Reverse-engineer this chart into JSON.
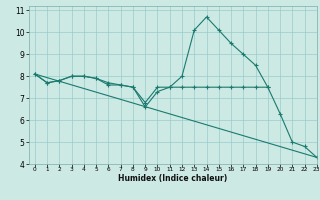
{
  "title": "",
  "xlabel": "Humidex (Indice chaleur)",
  "xlim": [
    -0.5,
    23
  ],
  "ylim": [
    4,
    11.2
  ],
  "xticks": [
    0,
    1,
    2,
    3,
    4,
    5,
    6,
    7,
    8,
    9,
    10,
    11,
    12,
    13,
    14,
    15,
    16,
    17,
    18,
    19,
    20,
    21,
    22,
    23
  ],
  "yticks": [
    4,
    5,
    6,
    7,
    8,
    9,
    10,
    11
  ],
  "bg_color": "#cce9e4",
  "grid_color": "#99cccc",
  "line_color": "#1a7a6e",
  "lines": [
    {
      "x": [
        0,
        1,
        2,
        3,
        4,
        5,
        6,
        7,
        8,
        9,
        10,
        11,
        12,
        13,
        14,
        15,
        16,
        17,
        18,
        19,
        20,
        21,
        22,
        23
      ],
      "y": [
        8.1,
        7.7,
        7.8,
        8.0,
        8.0,
        7.9,
        7.7,
        7.6,
        7.5,
        6.6,
        7.3,
        7.5,
        8.0,
        10.1,
        10.7,
        10.1,
        9.5,
        9.0,
        8.5,
        7.5,
        6.3,
        5.0,
        4.8,
        4.3
      ],
      "marker": true
    },
    {
      "x": [
        0,
        1,
        2,
        3,
        4,
        5,
        6,
        7,
        8,
        9,
        10,
        11,
        12,
        13,
        14,
        15,
        16,
        17,
        18,
        19
      ],
      "y": [
        8.1,
        7.7,
        7.8,
        8.0,
        8.0,
        7.9,
        7.6,
        7.6,
        7.5,
        6.8,
        7.5,
        7.5,
        7.5,
        7.5,
        7.5,
        7.5,
        7.5,
        7.5,
        7.5,
        7.5
      ],
      "marker": true
    },
    {
      "x": [
        0,
        23
      ],
      "y": [
        8.1,
        4.3
      ],
      "marker": false
    }
  ]
}
